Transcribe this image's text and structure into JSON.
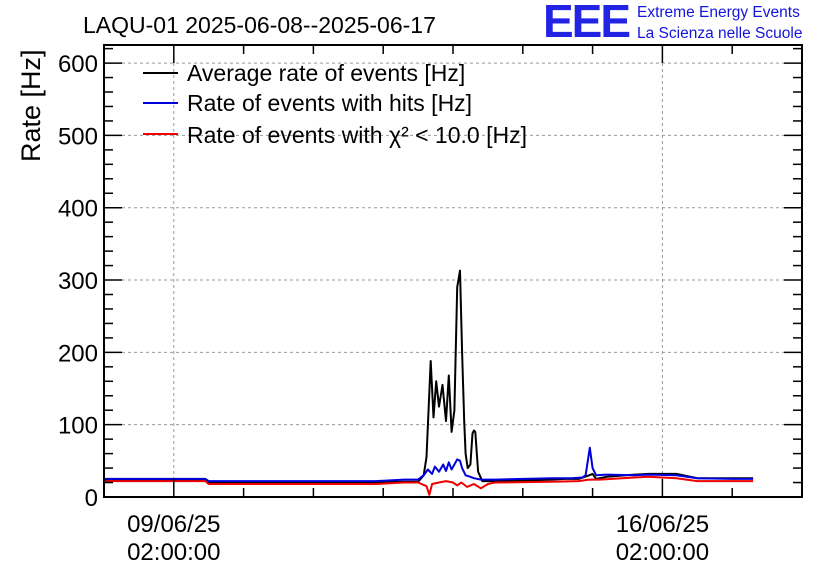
{
  "logo": {
    "mark": "EEE",
    "line1": "Extreme Energy Events",
    "line2": "La Scienza nelle Scuole"
  },
  "colors": {
    "avg": "#000000",
    "hits": "#0000dd",
    "chi2": "#ee0000",
    "grid": "#9a9a9a"
  },
  "chart_data": {
    "type": "line",
    "title": "LAQU-01 2025-06-08--2025-06-17",
    "ylabel": "Rate [Hz]",
    "xlabel": "",
    "x_unit": "days",
    "xlim": [
      0,
      10
    ],
    "ylim": [
      0,
      625
    ],
    "grid": true,
    "legend_position": "top-left",
    "yticks": [
      0,
      100,
      200,
      300,
      400,
      500,
      600
    ],
    "xticks": [
      {
        "x": 1.0,
        "label_date": "09/06/25",
        "label_time": "02:00:00"
      },
      {
        "x": 8.0,
        "label_date": "16/06/25",
        "label_time": "02:00:00"
      }
    ],
    "series": [
      {
        "key": "avg",
        "name": "Average rate of events [Hz]",
        "points": [
          [
            0.0,
            23
          ],
          [
            1.45,
            23
          ],
          [
            1.5,
            20
          ],
          [
            3.9,
            20
          ],
          [
            4.3,
            21
          ],
          [
            4.5,
            21
          ],
          [
            4.58,
            30
          ],
          [
            4.62,
            55
          ],
          [
            4.68,
            188
          ],
          [
            4.72,
            110
          ],
          [
            4.76,
            160
          ],
          [
            4.8,
            125
          ],
          [
            4.85,
            155
          ],
          [
            4.9,
            105
          ],
          [
            4.94,
            168
          ],
          [
            4.98,
            90
          ],
          [
            5.02,
            120
          ],
          [
            5.06,
            290
          ],
          [
            5.1,
            313
          ],
          [
            5.13,
            200
          ],
          [
            5.16,
            105
          ],
          [
            5.18,
            60
          ],
          [
            5.21,
            40
          ],
          [
            5.25,
            45
          ],
          [
            5.28,
            88
          ],
          [
            5.3,
            92
          ],
          [
            5.32,
            90
          ],
          [
            5.36,
            35
          ],
          [
            5.42,
            22
          ],
          [
            5.6,
            22
          ],
          [
            6.1,
            23
          ],
          [
            6.4,
            24
          ],
          [
            6.6,
            25
          ],
          [
            6.8,
            25
          ],
          [
            6.95,
            30
          ],
          [
            7.0,
            32
          ],
          [
            7.05,
            25
          ],
          [
            7.2,
            28
          ],
          [
            7.6,
            31
          ],
          [
            7.8,
            32
          ],
          [
            8.2,
            32
          ],
          [
            8.5,
            26
          ],
          [
            9.0,
            26
          ],
          [
            9.3,
            26
          ]
        ]
      },
      {
        "key": "hits",
        "name": "Rate of events with hits [Hz]",
        "points": [
          [
            0.0,
            25
          ],
          [
            1.45,
            25
          ],
          [
            1.5,
            22
          ],
          [
            3.9,
            22
          ],
          [
            4.3,
            24
          ],
          [
            4.5,
            24
          ],
          [
            4.58,
            30
          ],
          [
            4.64,
            38
          ],
          [
            4.7,
            32
          ],
          [
            4.74,
            42
          ],
          [
            4.8,
            35
          ],
          [
            4.86,
            45
          ],
          [
            4.9,
            36
          ],
          [
            4.94,
            48
          ],
          [
            4.98,
            38
          ],
          [
            5.02,
            45
          ],
          [
            5.06,
            52
          ],
          [
            5.1,
            50
          ],
          [
            5.13,
            40
          ],
          [
            5.18,
            30
          ],
          [
            5.25,
            28
          ],
          [
            5.3,
            26
          ],
          [
            5.4,
            24
          ],
          [
            5.6,
            24
          ],
          [
            6.4,
            26
          ],
          [
            6.7,
            26
          ],
          [
            6.85,
            27
          ],
          [
            6.9,
            30
          ],
          [
            6.96,
            68
          ],
          [
            7.0,
            40
          ],
          [
            7.05,
            30
          ],
          [
            7.2,
            31
          ],
          [
            7.6,
            30
          ],
          [
            7.8,
            31
          ],
          [
            8.2,
            30
          ],
          [
            8.5,
            26
          ],
          [
            9.0,
            25
          ],
          [
            9.3,
            25
          ]
        ]
      },
      {
        "key": "chi2",
        "name": "Rate of events with χ² < 10.0 [Hz]",
        "points": [
          [
            0.0,
            22
          ],
          [
            1.45,
            22
          ],
          [
            1.5,
            18
          ],
          [
            3.9,
            18
          ],
          [
            4.3,
            20
          ],
          [
            4.5,
            20
          ],
          [
            4.62,
            15
          ],
          [
            4.66,
            3
          ],
          [
            4.7,
            18
          ],
          [
            4.8,
            20
          ],
          [
            4.9,
            22
          ],
          [
            5.0,
            20
          ],
          [
            5.06,
            16
          ],
          [
            5.12,
            20
          ],
          [
            5.2,
            14
          ],
          [
            5.3,
            18
          ],
          [
            5.4,
            12
          ],
          [
            5.5,
            18
          ],
          [
            5.6,
            20
          ],
          [
            6.4,
            21
          ],
          [
            6.8,
            22
          ],
          [
            6.95,
            24
          ],
          [
            7.1,
            24
          ],
          [
            7.6,
            27
          ],
          [
            7.8,
            28
          ],
          [
            8.2,
            26
          ],
          [
            8.5,
            22
          ],
          [
            9.0,
            22
          ],
          [
            9.3,
            22
          ]
        ]
      }
    ]
  }
}
